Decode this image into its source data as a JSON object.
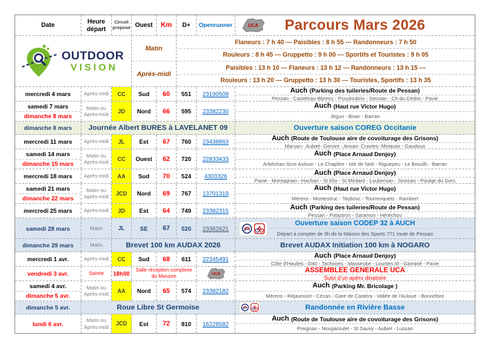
{
  "header": {
    "title": "Parcours Mars 2026",
    "columns": {
      "date": "Date",
      "heure": "Heure départ",
      "circuit": "Circuit proposé",
      "ouest": "Ouest",
      "km": "Km",
      "dplus": "D+",
      "openrunner": "Openrunner"
    }
  },
  "logo": {
    "line1": "OUTDOOR",
    "line2": "VISION",
    "club_badge": "UCA"
  },
  "schedule": {
    "matin_label": "Matin",
    "apresmidi_label": "Après-midi",
    "lines": [
      "Flaneurs : 7 h 40  ---  Paisibles : 8 h 55  ---  Randonneurs : 7 h 50",
      "Rouleurs : 8 h 45  ---  Gruppetto : 9 h 00  ---  Sportifs et Touristes : 9 h 05",
      "Paisibles : 13 h 10  ---  Flaneurs : 13 h 12  ---  Randonneurs : 13 h 15 ---",
      "Rouleurs : 13 h 20  ---  Gruppetto : 13 h 30  ---  Touristes, Sportifs : 13 h 35"
    ]
  },
  "colors": {
    "accent_title": "#B5491E",
    "schedule_text": "#974706",
    "highlight_yellow": "#FFFF00",
    "special_green_bg": "#EBF1DE",
    "special_blue_bg": "#DBE5F1",
    "link_blue": "#0563C1",
    "heading_blue": "#0070C0",
    "navy": "#1F4270",
    "alert_red": "#FF0000"
  },
  "rows": [
    {
      "type": "ride",
      "dates": [
        {
          "t": "mercredi 4 mars",
          "c": "black"
        }
      ],
      "heure": "Après-midi",
      "circuit": "CC",
      "cy": true,
      "dir": "Sud",
      "km": "60",
      "dplus": "551",
      "link": "23190509",
      "place": "Auch",
      "pdet": "(Parking des tuileries/Route de Pessan)",
      "sub": "Pessan - Castelnau-Bbrens - Pouyloubrin - Seissan - Ch du Cédon - Pavie"
    },
    {
      "type": "ride",
      "dates": [
        {
          "t": "samedi 7 mars",
          "c": "black"
        },
        {
          "t": "dimanche 8 mars",
          "c": "red"
        }
      ],
      "heure": "Matin ou\nAprès-midi",
      "circuit": "JD",
      "cy": true,
      "dir": "Nord",
      "km": "66",
      "dplus": "595",
      "link": "23382230",
      "place": "Auch",
      "pdet": "(Haut rue Victor Hugo)",
      "sub": "Jégun - Biran - Barran"
    },
    {
      "type": "banner",
      "bg": "green",
      "date": {
        "t": "dimanche 8 mars",
        "c": "navy"
      },
      "midStart": 2,
      "mid": {
        "t": "Journée Albert BURES à LAVELANET 09",
        "c": "navy"
      },
      "right": {
        "t": "Ouverture saison COREG Occitanie",
        "c": "blue"
      }
    },
    {
      "type": "ride",
      "dates": [
        {
          "t": "mercredi 11 mars",
          "c": "black"
        }
      ],
      "heure": "Après-midi",
      "circuit": "JL",
      "cy": true,
      "dir": "Est",
      "km": "67",
      "dplus": "760",
      "link": "23438863",
      "place": "Auch",
      "pdet": "(Route de Toulouse aire de covoiturage des Grisons)",
      "sub": "Marsan - Aubiet- Gimont - Ansan- Crastes- Mirepoix - Gaudoux"
    },
    {
      "type": "ride",
      "dates": [
        {
          "t": "samedi 14 mars",
          "c": "black"
        },
        {
          "t": "dimanche 15 mars",
          "c": "red"
        }
      ],
      "heure": "Matin ou\nAprès-midi",
      "circuit": "CC",
      "cy": true,
      "dir": "Ouest",
      "km": "62",
      "dplus": "720",
      "link": "22833433",
      "place": "Auch",
      "pdet": "(Place Arnaud Denjoy)",
      "sub": "Arbéchan-Srce Auloue - Le Chapître - Isle de Noé - Riguepeu - Le Brouilh - Barran"
    },
    {
      "type": "ride",
      "dates": [
        {
          "t": "mercredi 18 mars",
          "c": "black"
        }
      ],
      "heure": "Après-midi",
      "circuit": "AA",
      "cy": true,
      "dir": "Sud",
      "km": "70",
      "dplus": "524",
      "link": "4303326",
      "place": "Auch",
      "pdet": "(Place Arnaud Denjoy)",
      "sub": "Pavie - Montagnan - Hachan - St Elix - St Médard - Loubersan - Seissan - Poutge du Gers"
    },
    {
      "type": "ride",
      "dates": [
        {
          "t": "samedi 21 mars",
          "c": "black"
        },
        {
          "t": "dimanche 22 mars",
          "c": "red"
        }
      ],
      "heure": "Matin ou\nAprès-midi",
      "circuit": "JCD",
      "cy": true,
      "dir": "Nord",
      "km": "69",
      "dplus": "767",
      "link": "13701319",
      "place": "Auch",
      "pdet": "(Haut rue Victor Hugo)",
      "sub": "Mérens - Montestruc - Taybosc - Tourrenquets - Rambert"
    },
    {
      "type": "ride",
      "dates": [
        {
          "t": "mercredi 25 mars",
          "c": "black"
        }
      ],
      "heure": "Après-midi",
      "circuit": "JD",
      "cy": true,
      "dir": "Est",
      "km": "64",
      "dplus": "749",
      "link": "23382315",
      "place": "Auch",
      "pdet": "(Parking des tuileries/Route de Pessan)",
      "sub": "Pessan - Polastron - Saramon - Héréchou"
    },
    {
      "type": "ride",
      "bg": "blue",
      "valNavy": true,
      "icons": true,
      "dates": [
        {
          "t": "samedi 28 mars",
          "c": "navy"
        }
      ],
      "heure": "Matin",
      "circuit": "JL",
      "cy": false,
      "dir": "SE",
      "km": "67",
      "dplus": "520",
      "link": "23362621",
      "title": {
        "t": "Ouverture saison CODEP 32 à AUCH",
        "c": "blue"
      },
      "sub": "Départ à compter de 9h de la Maison des Sports 771 route de Pessan"
    },
    {
      "type": "banner",
      "bg": "blue",
      "date": {
        "t": "dimanche 29 mars",
        "c": "navy"
      },
      "heure": "Matin",
      "midStart": 3,
      "mid": {
        "t": "Brevet 100 km AUDAX 2026",
        "c": "navy"
      },
      "right": {
        "t": "Brevet AUDAX Initiation 100 km à NOGARO",
        "c": "navy"
      }
    },
    {
      "type": "ride",
      "dates": [
        {
          "t": "mercredi 1 avr.",
          "c": "black"
        }
      ],
      "heure": "Après-midi",
      "circuit": "CC",
      "cy": true,
      "dir": "Sud",
      "km": "68",
      "dplus": "611",
      "link": "22345491",
      "place": "Auch",
      "pdet": "(Place Arnaud Denjoy)",
      "sub": "Côte d'Haulies - D40 - Tachoires - Masseube - Lourties M - Garrané - Pavie"
    },
    {
      "type": "ag",
      "date": {
        "t": "vendredi 3 avr.",
        "c": "red"
      },
      "heure": "Soirée",
      "time": "18h00",
      "venue": "Salle réception complexe du Mouzon",
      "title": "ASSEMBLEE GENERALE UCA",
      "sub": "Suivi d'un apéro dinatoire"
    },
    {
      "type": "ride",
      "dates": [
        {
          "t": "samedi 4 avr.",
          "c": "black"
        },
        {
          "t": "dimanche 5 avr.",
          "c": "red"
        }
      ],
      "heure": "Matin ou\nAprès-midi",
      "circuit": "AA",
      "cy": true,
      "dir": "Nord",
      "km": "65",
      "dplus": "574",
      "link": "23382182",
      "place": "Auch",
      "pdet": "(Parking Mr. Bricolage )",
      "sub": "Mérens - Réjaumont - Cézan - Gare de Castéra - Vallée de l'Auloue - Bonnefont"
    },
    {
      "type": "banner",
      "bg": "blue",
      "date": {
        "t": "dimanche 5 avr.",
        "c": "navy"
      },
      "midStart": 2,
      "mid": {
        "t": "Roue Libre St Germoise",
        "c": "navy"
      },
      "right": {
        "t": "Randonnée en Rivière Basse",
        "c": "blue"
      },
      "rightIcons": true
    },
    {
      "type": "ride",
      "dates": [
        {
          "t": "lundi 6 avr.",
          "c": "red"
        }
      ],
      "heure": "Matin ou\nAprès-midi",
      "circuit": "JCD",
      "cy": true,
      "dir": "Est",
      "km": "72",
      "dplus": "810",
      "link": "16228582",
      "place": "Auch",
      "pdet": "(Route de Toulouse aire de covoiturage des Grisons)",
      "sub": "Preignan - Nougaroulet - St Sauvy - Aubiet - Lussan"
    }
  ]
}
